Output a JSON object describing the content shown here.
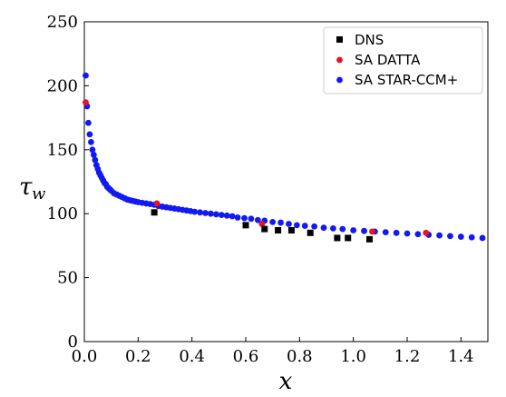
{
  "chart_data": {
    "type": "scatter",
    "xlabel": "x",
    "ylabel_main": "τ",
    "ylabel_sub": "w",
    "xlim": [
      0,
      1.5
    ],
    "ylim": [
      0,
      250
    ],
    "xticks": [
      "0.0",
      "0.2",
      "0.4",
      "0.6",
      "0.8",
      "1.0",
      "1.2",
      "1.4"
    ],
    "yticks": [
      "0",
      "50",
      "100",
      "150",
      "200",
      "250"
    ],
    "grid": false,
    "legend_position": "top-right",
    "series": [
      {
        "name": "DNS",
        "marker": "square",
        "color": "#000000",
        "points": [
          [
            0.26,
            101
          ],
          [
            0.6,
            91
          ],
          [
            0.67,
            88
          ],
          [
            0.72,
            87
          ],
          [
            0.77,
            87
          ],
          [
            0.84,
            85
          ],
          [
            0.94,
            81
          ],
          [
            0.98,
            81
          ],
          [
            1.06,
            80
          ]
        ]
      },
      {
        "name": "SA DATTA",
        "marker": "circle",
        "color": "#e8131f",
        "points": [
          [
            0.005,
            187
          ],
          [
            0.27,
            108
          ],
          [
            0.66,
            92
          ],
          [
            1.07,
            86
          ],
          [
            1.27,
            85
          ]
        ]
      },
      {
        "name": "SA STAR-CCM+",
        "marker": "circle",
        "color": "#1219f2",
        "points": [
          [
            0.005,
            208
          ],
          [
            0.01,
            184
          ],
          [
            0.015,
            171
          ],
          [
            0.02,
            162
          ],
          [
            0.025,
            156
          ],
          [
            0.03,
            150
          ],
          [
            0.035,
            146
          ],
          [
            0.04,
            142
          ],
          [
            0.045,
            138
          ],
          [
            0.05,
            135
          ],
          [
            0.055,
            132
          ],
          [
            0.06,
            130
          ],
          [
            0.065,
            128
          ],
          [
            0.07,
            126
          ],
          [
            0.075,
            124
          ],
          [
            0.08,
            123
          ],
          [
            0.085,
            121
          ],
          [
            0.09,
            120
          ],
          [
            0.095,
            119
          ],
          [
            0.1,
            118
          ],
          [
            0.11,
            116
          ],
          [
            0.12,
            115
          ],
          [
            0.13,
            114
          ],
          [
            0.14,
            113
          ],
          [
            0.15,
            112
          ],
          [
            0.16,
            111
          ],
          [
            0.17,
            110.5
          ],
          [
            0.18,
            110
          ],
          [
            0.19,
            109.5
          ],
          [
            0.2,
            109
          ],
          [
            0.215,
            108.5
          ],
          [
            0.23,
            108
          ],
          [
            0.245,
            107.5
          ],
          [
            0.26,
            107
          ],
          [
            0.275,
            106
          ],
          [
            0.29,
            105.5
          ],
          [
            0.305,
            105
          ],
          [
            0.32,
            104.5
          ],
          [
            0.335,
            104
          ],
          [
            0.35,
            103.5
          ],
          [
            0.365,
            103
          ],
          [
            0.38,
            102.5
          ],
          [
            0.395,
            102
          ],
          [
            0.41,
            101.5
          ],
          [
            0.43,
            101
          ],
          [
            0.45,
            100.5
          ],
          [
            0.47,
            100
          ],
          [
            0.49,
            99.5
          ],
          [
            0.51,
            99
          ],
          [
            0.53,
            98.5
          ],
          [
            0.55,
            98
          ],
          [
            0.57,
            97
          ],
          [
            0.595,
            96.5
          ],
          [
            0.62,
            96
          ],
          [
            0.645,
            95
          ],
          [
            0.67,
            94.5
          ],
          [
            0.7,
            93.5
          ],
          [
            0.73,
            93
          ],
          [
            0.76,
            92
          ],
          [
            0.79,
            91
          ],
          [
            0.82,
            90.5
          ],
          [
            0.855,
            90
          ],
          [
            0.89,
            89
          ],
          [
            0.925,
            88.5
          ],
          [
            0.96,
            88
          ],
          [
            1.0,
            87
          ],
          [
            1.04,
            86.5
          ],
          [
            1.08,
            86
          ],
          [
            1.12,
            85.5
          ],
          [
            1.16,
            85
          ],
          [
            1.2,
            84.5
          ],
          [
            1.24,
            84
          ],
          [
            1.28,
            83.5
          ],
          [
            1.32,
            83
          ],
          [
            1.36,
            82.5
          ],
          [
            1.4,
            82
          ],
          [
            1.44,
            81.5
          ],
          [
            1.48,
            81
          ]
        ]
      }
    ]
  }
}
